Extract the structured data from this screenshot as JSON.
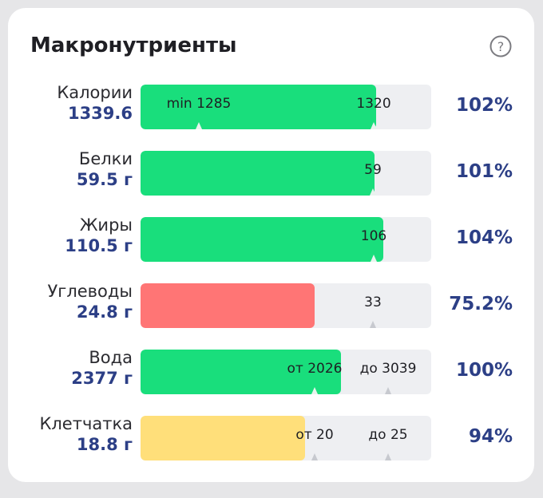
{
  "header": {
    "title": "Макронутриенты",
    "help_icon": "question-circle-icon"
  },
  "colors": {
    "fill_ok": "#19de7c",
    "fill_low": "#ff7575",
    "fill_warn": "#ffdf7a",
    "track": "#eeeff2",
    "value_text": "#2c3f86"
  },
  "rows": [
    {
      "name": "Калории",
      "value": "1339.6",
      "percent": "102%",
      "markers": [
        "min 1285",
        "1320"
      ],
      "fill_fraction": 0.81,
      "fill_color": "green"
    },
    {
      "name": "Белки",
      "value": "59.5 г",
      "percent": "101%",
      "markers": [
        "59"
      ],
      "fill_fraction": 0.805,
      "fill_color": "green"
    },
    {
      "name": "Жиры",
      "value": "110.5 г",
      "percent": "104%",
      "markers": [
        "106"
      ],
      "fill_fraction": 0.835,
      "fill_color": "green"
    },
    {
      "name": "Углеводы",
      "value": "24.8 г",
      "percent": "75.2%",
      "markers": [
        "33"
      ],
      "fill_fraction": 0.6,
      "fill_color": "red"
    },
    {
      "name": "Вода",
      "value": "2377 г",
      "percent": "100%",
      "markers": [
        "от 2026",
        "до 3039"
      ],
      "fill_fraction": 0.69,
      "fill_color": "green"
    },
    {
      "name": "Клетчатка",
      "value": "18.8 г",
      "percent": "94%",
      "markers": [
        "от 20",
        "до 25"
      ],
      "fill_fraction": 0.565,
      "fill_color": "yellow"
    }
  ]
}
